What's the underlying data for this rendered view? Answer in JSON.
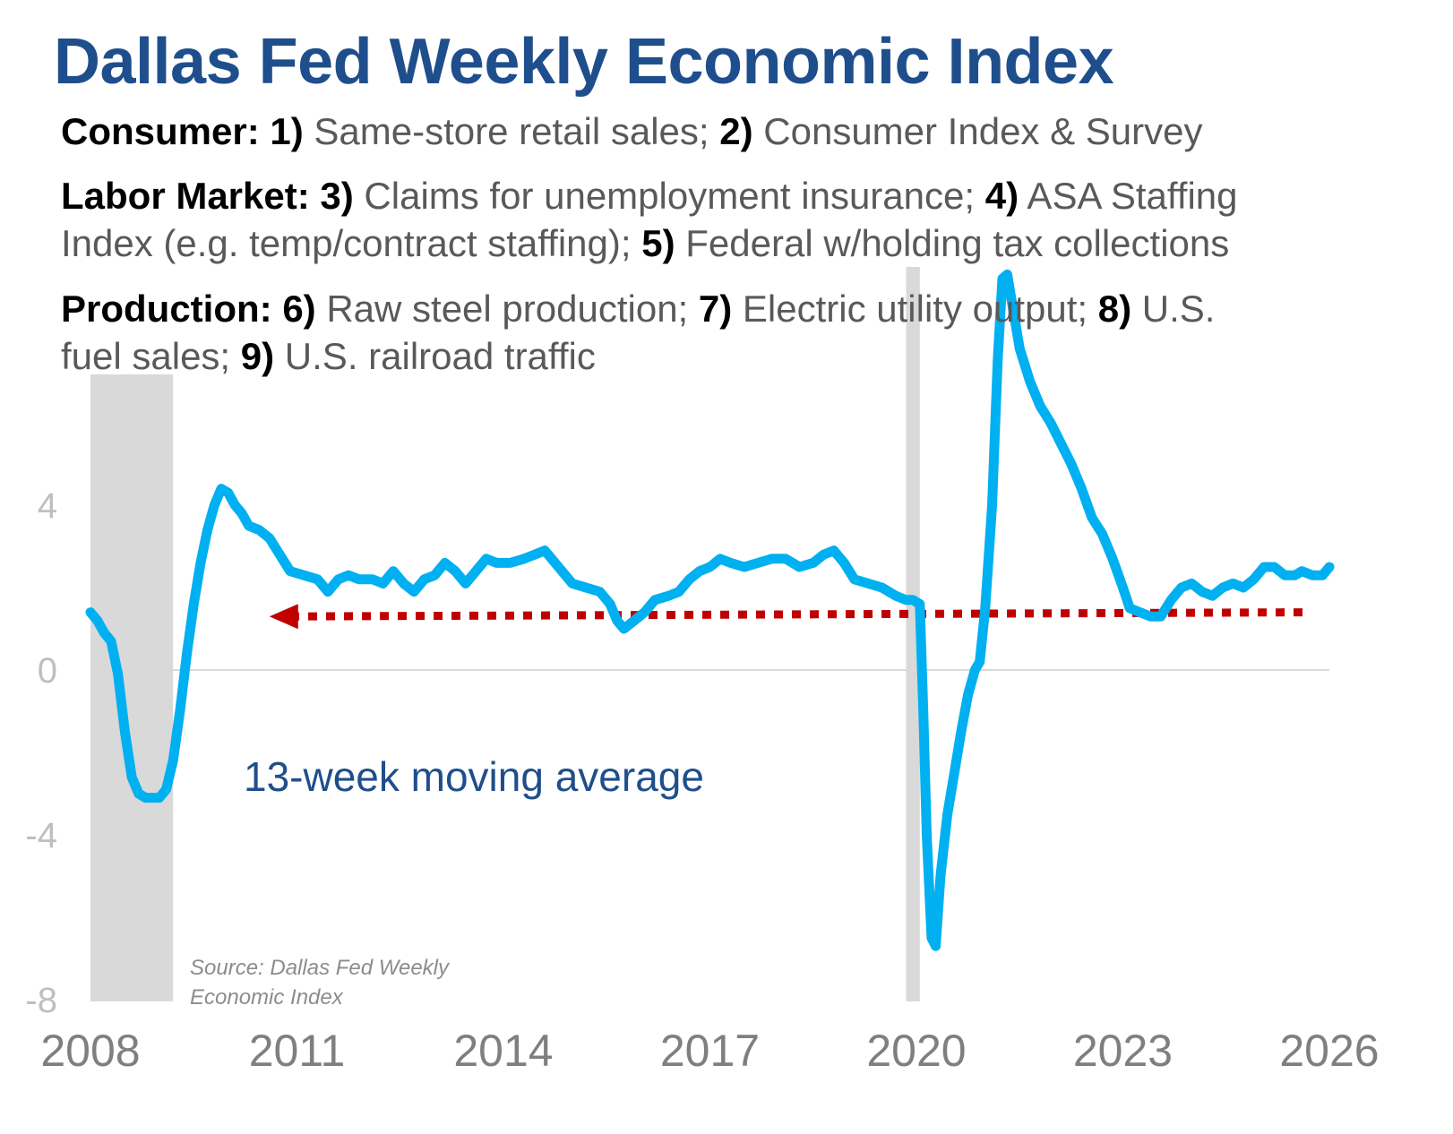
{
  "title": "Dallas Fed Weekly Economic Index",
  "consumer": {
    "label": "Consumer:",
    "n1": "1)",
    "t1": " Same-store retail sales; ",
    "n2": "2)",
    "t2": " Consumer Index & Survey"
  },
  "labor": {
    "label": "Labor Market:",
    "n3": "3)",
    "t3": " Claims for unemployment insurance; ",
    "n4": "4)",
    "t4": " ASA Staffing",
    "t4b": "Index (e.g. temp/contract staffing); ",
    "n5": "5)",
    "t5": " Federal w/holding tax collections"
  },
  "production": {
    "label": "Production:",
    "n6": "6)",
    "t6": " Raw steel production; ",
    "n7": "7)",
    "t7": " Electric utility output; ",
    "n8": "8)",
    "t8": " U.S.",
    "t8b": "fuel sales; ",
    "n9": "9)",
    "t9": " U.S. railroad traffic"
  },
  "series_label": "13-week moving average",
  "source": {
    "line1": "Source: Dallas Fed Weekly",
    "line2": "Economic Index"
  },
  "colors": {
    "title": "#1f4e8c",
    "line": "#00b0f0",
    "recession": "#d9d9d9",
    "arrow": "#c00000",
    "zero_line": "#d9d9d9"
  },
  "chart_data": {
    "type": "line",
    "xlim": [
      2008,
      2026
    ],
    "ylim": [
      -8,
      8
    ],
    "x_ticks": [
      2008,
      2011,
      2014,
      2017,
      2020,
      2023,
      2026
    ],
    "x_tick_labels": [
      "2008",
      "2011",
      "2014",
      "2017",
      "2020",
      "2023",
      "2026"
    ],
    "y_ticks": [
      4,
      0,
      -4,
      -8
    ],
    "y_tick_labels": [
      "4",
      "0",
      "-4",
      "-8"
    ],
    "grid": false,
    "recessions": [
      [
        2008.0,
        2009.2
      ],
      [
        2019.85,
        2020.05
      ]
    ],
    "reference_arrow": {
      "from": [
        2026.0,
        1.4
      ],
      "to": [
        2010.6,
        1.3
      ],
      "style": "dotted"
    },
    "series": [
      {
        "values": [
          [
            2008.0,
            1.4
          ],
          [
            2008.1,
            1.2
          ],
          [
            2008.2,
            0.9
          ],
          [
            2008.3,
            0.7
          ],
          [
            2008.4,
            -0.1
          ],
          [
            2008.5,
            -1.5
          ],
          [
            2008.6,
            -2.6
          ],
          [
            2008.7,
            -3.0
          ],
          [
            2008.8,
            -3.1
          ],
          [
            2008.9,
            -3.1
          ],
          [
            2009.0,
            -3.1
          ],
          [
            2009.1,
            -2.9
          ],
          [
            2009.2,
            -2.2
          ],
          [
            2009.3,
            -1.0
          ],
          [
            2009.4,
            0.4
          ],
          [
            2009.5,
            1.6
          ],
          [
            2009.6,
            2.6
          ],
          [
            2009.7,
            3.4
          ],
          [
            2009.8,
            4.0
          ],
          [
            2009.9,
            4.4
          ],
          [
            2010.0,
            4.3
          ],
          [
            2010.1,
            4.0
          ],
          [
            2010.2,
            3.8
          ],
          [
            2010.3,
            3.5
          ],
          [
            2010.45,
            3.4
          ],
          [
            2010.6,
            3.2
          ],
          [
            2010.75,
            2.8
          ],
          [
            2010.9,
            2.4
          ],
          [
            2011.1,
            2.3
          ],
          [
            2011.3,
            2.2
          ],
          [
            2011.45,
            1.9
          ],
          [
            2011.6,
            2.2
          ],
          [
            2011.75,
            2.3
          ],
          [
            2011.9,
            2.2
          ],
          [
            2012.1,
            2.2
          ],
          [
            2012.25,
            2.1
          ],
          [
            2012.4,
            2.4
          ],
          [
            2012.55,
            2.1
          ],
          [
            2012.7,
            1.9
          ],
          [
            2012.85,
            2.2
          ],
          [
            2013.0,
            2.3
          ],
          [
            2013.15,
            2.6
          ],
          [
            2013.3,
            2.4
          ],
          [
            2013.45,
            2.1
          ],
          [
            2013.6,
            2.4
          ],
          [
            2013.75,
            2.7
          ],
          [
            2013.9,
            2.6
          ],
          [
            2014.1,
            2.6
          ],
          [
            2014.3,
            2.7
          ],
          [
            2014.45,
            2.8
          ],
          [
            2014.6,
            2.9
          ],
          [
            2014.8,
            2.5
          ],
          [
            2015.0,
            2.1
          ],
          [
            2015.2,
            2.0
          ],
          [
            2015.4,
            1.9
          ],
          [
            2015.55,
            1.6
          ],
          [
            2015.65,
            1.2
          ],
          [
            2015.75,
            1.0
          ],
          [
            2015.9,
            1.2
          ],
          [
            2016.05,
            1.4
          ],
          [
            2016.2,
            1.7
          ],
          [
            2016.4,
            1.8
          ],
          [
            2016.55,
            1.9
          ],
          [
            2016.7,
            2.2
          ],
          [
            2016.85,
            2.4
          ],
          [
            2017.0,
            2.5
          ],
          [
            2017.15,
            2.7
          ],
          [
            2017.3,
            2.6
          ],
          [
            2017.5,
            2.5
          ],
          [
            2017.7,
            2.6
          ],
          [
            2017.9,
            2.7
          ],
          [
            2018.1,
            2.7
          ],
          [
            2018.3,
            2.5
          ],
          [
            2018.5,
            2.6
          ],
          [
            2018.65,
            2.8
          ],
          [
            2018.8,
            2.9
          ],
          [
            2018.95,
            2.6
          ],
          [
            2019.1,
            2.2
          ],
          [
            2019.3,
            2.1
          ],
          [
            2019.5,
            2.0
          ],
          [
            2019.7,
            1.8
          ],
          [
            2019.85,
            1.7
          ],
          [
            2019.95,
            1.7
          ],
          [
            2020.05,
            1.6
          ],
          [
            2020.1,
            -1.0
          ],
          [
            2020.15,
            -4.0
          ],
          [
            2020.22,
            -6.5
          ],
          [
            2020.28,
            -6.7
          ],
          [
            2020.35,
            -5.0
          ],
          [
            2020.45,
            -3.5
          ],
          [
            2020.55,
            -2.5
          ],
          [
            2020.65,
            -1.5
          ],
          [
            2020.75,
            -0.6
          ],
          [
            2020.85,
            0.0
          ],
          [
            2020.92,
            0.2
          ],
          [
            2021.0,
            1.5
          ],
          [
            2021.1,
            4.0
          ],
          [
            2021.18,
            7.5
          ],
          [
            2021.25,
            9.5
          ],
          [
            2021.32,
            9.6
          ],
          [
            2021.4,
            8.8
          ],
          [
            2021.5,
            7.8
          ],
          [
            2021.65,
            7.0
          ],
          [
            2021.8,
            6.4
          ],
          [
            2021.95,
            6.0
          ],
          [
            2022.1,
            5.5
          ],
          [
            2022.25,
            5.0
          ],
          [
            2022.4,
            4.4
          ],
          [
            2022.55,
            3.7
          ],
          [
            2022.7,
            3.3
          ],
          [
            2022.85,
            2.7
          ],
          [
            2023.0,
            2.0
          ],
          [
            2023.1,
            1.5
          ],
          [
            2023.25,
            1.4
          ],
          [
            2023.4,
            1.3
          ],
          [
            2023.55,
            1.3
          ],
          [
            2023.7,
            1.7
          ],
          [
            2023.85,
            2.0
          ],
          [
            2024.0,
            2.1
          ],
          [
            2024.15,
            1.9
          ],
          [
            2024.3,
            1.8
          ],
          [
            2024.45,
            2.0
          ],
          [
            2024.6,
            2.1
          ],
          [
            2024.75,
            2.0
          ],
          [
            2024.9,
            2.2
          ],
          [
            2025.05,
            2.5
          ],
          [
            2025.2,
            2.5
          ],
          [
            2025.35,
            2.3
          ],
          [
            2025.5,
            2.3
          ],
          [
            2025.6,
            2.4
          ],
          [
            2025.75,
            2.3
          ],
          [
            2025.9,
            2.3
          ],
          [
            2026.0,
            2.5
          ]
        ]
      }
    ]
  }
}
